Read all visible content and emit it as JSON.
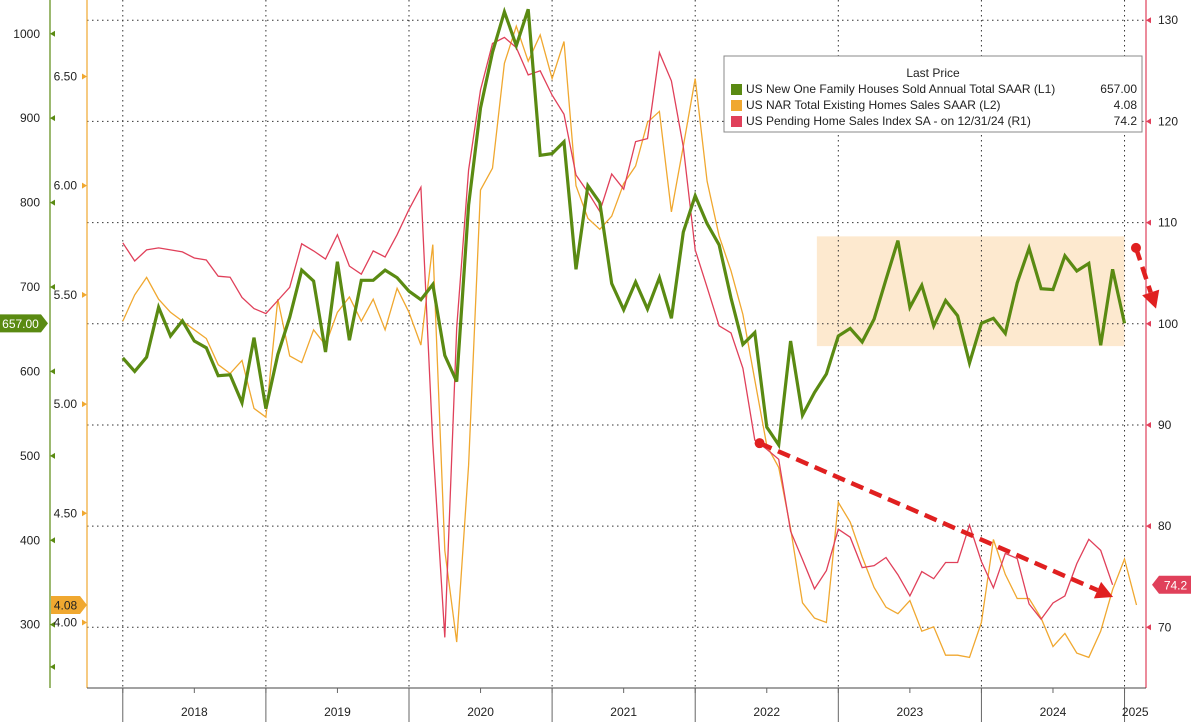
{
  "chart_data": {
    "type": "line",
    "title": "",
    "legend": {
      "header": "Last Price",
      "position": "top-right",
      "entries": [
        {
          "label": "US New One Family Houses Sold Annual Total SAAR  (L1)",
          "value": "657.00",
          "color": "#5a8a12"
        },
        {
          "label": "US NAR Total Existing Homes Sales SAAR  (L2)",
          "value": "4.08",
          "color": "#f0a830"
        },
        {
          "label": "US Pending Home Sales Index SA -  on 12/31/24  (R1)",
          "value": "74.2",
          "color": "#e0405a"
        }
      ]
    },
    "x_range": [
      2017.75,
      2025.15
    ],
    "x_ticks": [
      "2018",
      "2019",
      "2020",
      "2021",
      "2022",
      "2023",
      "2024",
      "2025"
    ],
    "axes": {
      "L1": {
        "range": [
          225,
          1040
        ],
        "ticks": [
          "1000",
          "900",
          "800",
          "700",
          "600",
          "500",
          "400",
          "300"
        ],
        "color": "#5a8a12"
      },
      "L2": {
        "range": [
          3.7,
          6.85
        ],
        "ticks": [
          "6.50",
          "6.00",
          "5.50",
          "5.00",
          "4.50",
          "4.00"
        ],
        "color": "#f0a830"
      },
      "R1": {
        "range": [
          64,
          132
        ],
        "ticks": [
          "130",
          "120",
          "110",
          "100",
          "90",
          "80",
          "70"
        ],
        "color": "#e0405a"
      }
    },
    "last_price_labels": {
      "L1": "657.00",
      "L2": "4.08",
      "R1": "74.2"
    },
    "grid": true,
    "series": [
      {
        "name": "US New One Family Houses Sold Annual Total SAAR",
        "axis": "L1",
        "color": "#5a8a12",
        "x_start": 2018.0,
        "step": 0.0833333,
        "values": [
          616,
          600,
          617,
          676,
          642,
          660,
          636,
          628,
          595,
          596,
          563,
          640,
          556,
          620,
          664,
          720,
          707,
          623,
          730,
          637,
          708,
          708,
          720,
          711,
          695,
          685,
          703,
          619,
          588,
          797,
          912,
          978,
          1026,
          986,
          1029,
          856,
          858,
          872,
          721,
          820,
          800,
          704,
          673,
          706,
          674,
          711,
          663,
          765,
          808,
          775,
          750,
          687,
          632,
          646,
          534,
          513,
          636,
          548,
          575,
          597,
          642,
          651,
          635,
          662,
          709,
          755,
          676,
          702,
          654,
          684,
          666,
          610,
          657,
          663,
          645,
          705,
          746,
          698,
          697,
          737,
          719,
          728,
          631,
          721,
          657
        ]
      },
      {
        "name": "US NAR Total Existing Homes Sales SAAR",
        "axis": "L2",
        "color": "#f0a830",
        "x_start": 2018.0,
        "step": 0.0833333,
        "values": [
          5.38,
          5.5,
          5.58,
          5.48,
          5.42,
          5.38,
          5.34,
          5.3,
          5.18,
          5.14,
          5.2,
          4.98,
          4.94,
          5.48,
          5.22,
          5.19,
          5.34,
          5.27,
          5.42,
          5.49,
          5.38,
          5.48,
          5.34,
          5.53,
          5.42,
          5.27,
          5.73,
          4.33,
          3.91,
          4.72,
          5.98,
          6.08,
          6.56,
          6.73,
          6.57,
          6.69,
          6.49,
          6.66,
          6.0,
          5.85,
          5.8,
          5.86,
          6.01,
          6.09,
          6.29,
          6.34,
          5.88,
          6.18,
          6.49,
          6.02,
          5.77,
          5.61,
          5.41,
          5.11,
          4.81,
          4.71,
          4.43,
          4.09,
          4.02,
          4.0,
          4.55,
          4.46,
          4.3,
          4.16,
          4.07,
          4.04,
          4.1,
          3.96,
          3.98,
          3.85,
          3.85,
          3.84,
          4.0,
          4.38,
          4.22,
          4.11,
          4.11,
          4.02,
          3.89,
          3.95,
          3.86,
          3.84,
          3.96,
          4.15,
          4.29,
          4.08
        ]
      },
      {
        "name": "US Pending Home Sales Index SA",
        "axis": "R1",
        "color": "#e0405a",
        "x_start": 2018.0,
        "step": 0.0833333,
        "values": [
          108.0,
          106.2,
          107.3,
          107.5,
          107.3,
          107.1,
          106.5,
          106.3,
          104.7,
          104.6,
          102.6,
          101.5,
          101.0,
          102.3,
          103.6,
          107.9,
          107.2,
          106.4,
          108.8,
          105.7,
          104.9,
          107.2,
          106.6,
          108.8,
          111.3,
          113.5,
          88.2,
          69.0,
          99.6,
          115.2,
          123.1,
          127.7,
          128.3,
          127.3,
          124.6,
          125.0,
          122.6,
          120.7,
          114.7,
          113.0,
          111.1,
          114.8,
          113.3,
          118.0,
          118.3,
          126.8,
          124.0,
          117.5,
          107.3,
          103.6,
          99.8,
          99.1,
          95.6,
          88.5,
          87.6,
          86.6,
          79.5,
          76.7,
          73.8,
          75.6,
          79.7,
          78.9,
          75.9,
          76.1,
          76.9,
          75.2,
          73.1,
          75.5,
          74.8,
          76.4,
          76.4,
          80.1,
          76.5,
          73.9,
          77.3,
          76.8,
          72.3,
          70.8,
          72.4,
          73.1,
          76.3,
          78.7,
          77.6,
          74.2
        ]
      }
    ],
    "annotations": [
      {
        "kind": "shaded-region",
        "axis": "L1",
        "x": [
          2022.85,
          2025.0
        ],
        "y": [
          630,
          760
        ],
        "color": "#fde9cf"
      },
      {
        "kind": "dashed-arrow",
        "axis": "R1",
        "from": [
          2022.45,
          88.2
        ],
        "to": [
          2024.92,
          73.0
        ],
        "color": "#e02020"
      },
      {
        "kind": "dashed-arrow",
        "axis": "R1",
        "from": [
          2025.08,
          107.5
        ],
        "to": [
          2025.22,
          101.5
        ],
        "color": "#e02020"
      }
    ]
  }
}
